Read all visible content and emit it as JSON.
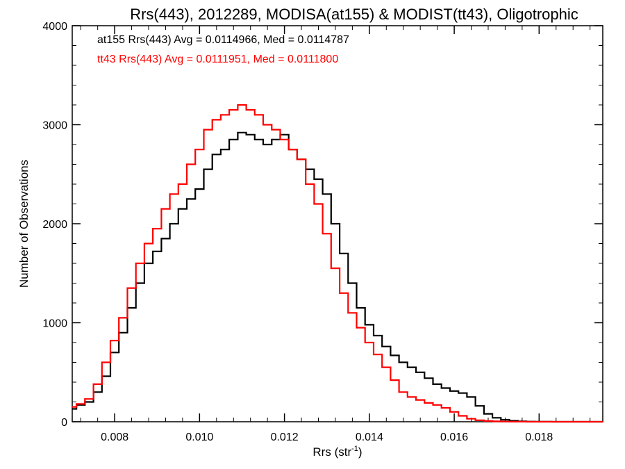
{
  "chart_data": {
    "type": "line",
    "title": "Rrs(443), 2012289, MODISA(at155) & MODIST(tt43), Oligotrophic",
    "xlabel_main": "Rrs (str",
    "xlabel_sup": "-1",
    "xlabel_close": ")",
    "ylabel": "Number of Observations",
    "xlim": [
      0.007,
      0.0195
    ],
    "ylim": [
      0,
      4000
    ],
    "xticks": [
      {
        "value": 0.008,
        "label": "0.008"
      },
      {
        "value": 0.01,
        "label": "0.010"
      },
      {
        "value": 0.012,
        "label": "0.012"
      },
      {
        "value": 0.014,
        "label": "0.014"
      },
      {
        "value": 0.016,
        "label": "0.016"
      },
      {
        "value": 0.018,
        "label": "0.018"
      }
    ],
    "yticks": [
      {
        "value": 0,
        "label": "0"
      },
      {
        "value": 1000,
        "label": "1000"
      },
      {
        "value": 2000,
        "label": "2000"
      },
      {
        "value": 3000,
        "label": "3000"
      },
      {
        "value": 4000,
        "label": "4000"
      }
    ],
    "legend": [
      {
        "text": "at155 Rrs(443) Avg = 0.0114966, Med = 0.0114787",
        "color": "#000000"
      },
      {
        "text": "tt43 Rrs(443) Avg = 0.0111951, Med = 0.0111800",
        "color": "#ff0000"
      }
    ],
    "legend_position": "top-left",
    "series": [
      {
        "name": "at155",
        "color": "#000000",
        "x": [
          0.007,
          0.0072,
          0.0074,
          0.0076,
          0.0078,
          0.008,
          0.0082,
          0.0084,
          0.0086,
          0.0088,
          0.009,
          0.0092,
          0.0094,
          0.0096,
          0.0098,
          0.01,
          0.0102,
          0.0104,
          0.0106,
          0.0108,
          0.011,
          0.0112,
          0.0114,
          0.0116,
          0.0118,
          0.012,
          0.0122,
          0.0124,
          0.0126,
          0.0128,
          0.013,
          0.0132,
          0.0134,
          0.0136,
          0.0138,
          0.014,
          0.0142,
          0.0144,
          0.0146,
          0.0148,
          0.015,
          0.0152,
          0.0154,
          0.0156,
          0.0158,
          0.016,
          0.0162,
          0.0164,
          0.0166,
          0.0168,
          0.017,
          0.0172,
          0.0174,
          0.0176,
          0.0178,
          0.018,
          0.0182,
          0.0184,
          0.0186,
          0.0188,
          0.019,
          0.0192,
          0.0194
        ],
        "y": [
          130,
          170,
          200,
          300,
          460,
          700,
          900,
          1150,
          1400,
          1600,
          1720,
          1850,
          2000,
          2150,
          2250,
          2350,
          2550,
          2700,
          2750,
          2850,
          2920,
          2900,
          2850,
          2800,
          2850,
          2900,
          2750,
          2650,
          2550,
          2450,
          2300,
          2000,
          1700,
          1400,
          1150,
          980,
          870,
          760,
          670,
          600,
          550,
          500,
          440,
          380,
          340,
          310,
          290,
          250,
          160,
          80,
          40,
          20,
          10,
          5,
          2,
          1,
          1,
          0,
          0,
          0,
          0,
          0,
          0
        ]
      },
      {
        "name": "tt43",
        "color": "#ff0000",
        "x": [
          0.007,
          0.0072,
          0.0074,
          0.0076,
          0.0078,
          0.008,
          0.0082,
          0.0084,
          0.0086,
          0.0088,
          0.009,
          0.0092,
          0.0094,
          0.0096,
          0.0098,
          0.01,
          0.0102,
          0.0104,
          0.0106,
          0.0108,
          0.011,
          0.0112,
          0.0114,
          0.0116,
          0.0118,
          0.012,
          0.0122,
          0.0124,
          0.0126,
          0.0128,
          0.013,
          0.0132,
          0.0134,
          0.0136,
          0.0138,
          0.014,
          0.0142,
          0.0144,
          0.0146,
          0.0148,
          0.015,
          0.0152,
          0.0154,
          0.0156,
          0.0158,
          0.016,
          0.0162,
          0.0164,
          0.0166,
          0.0168,
          0.017,
          0.0172,
          0.0174,
          0.0176,
          0.0178,
          0.018,
          0.0182,
          0.0184,
          0.0186,
          0.0188,
          0.019,
          0.0192,
          0.0194
        ],
        "y": [
          150,
          180,
          230,
          380,
          600,
          820,
          1050,
          1350,
          1600,
          1800,
          1950,
          2150,
          2300,
          2400,
          2600,
          2750,
          2950,
          3050,
          3100,
          3150,
          3200,
          3150,
          3100,
          3000,
          2950,
          2850,
          2750,
          2650,
          2400,
          2200,
          1900,
          1550,
          1300,
          1100,
          950,
          800,
          680,
          550,
          420,
          300,
          250,
          220,
          190,
          170,
          140,
          100,
          60,
          30,
          15,
          8,
          4,
          2,
          1,
          1,
          0,
          0,
          0,
          0,
          0,
          0,
          0,
          0,
          0
        ]
      }
    ],
    "grid": false
  }
}
